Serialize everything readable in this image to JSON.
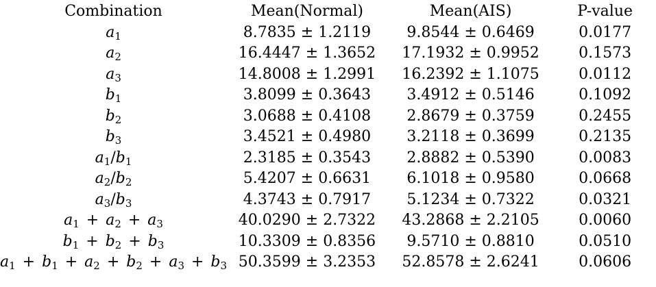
{
  "table": {
    "headers": [
      "Combination",
      "Mean(Normal)",
      "Mean(AIS)",
      "P-value"
    ],
    "rows": [
      {
        "combo": "a_1",
        "normal": "8.7835 ± 1.2119",
        "ais": "9.8544 ± 0.6469",
        "p": "0.0177",
        "bold": true
      },
      {
        "combo": "a_2",
        "normal": "16.4447 ± 1.3652",
        "ais": "17.1932 ± 0.9952",
        "p": "0.1573",
        "bold": false
      },
      {
        "combo": "a_3",
        "normal": "14.8008 ± 1.2991",
        "ais": "16.2392 ± 1.1075",
        "p": "0.0112",
        "bold": true
      },
      {
        "combo": "b_1",
        "normal": "3.8099 ± 0.3643",
        "ais": "3.4912 ± 0.5146",
        "p": "0.1092",
        "bold": false
      },
      {
        "combo": "b_2",
        "normal": "3.0688 ± 0.4108",
        "ais": "2.8679 ± 0.3759",
        "p": "0.2455",
        "bold": false
      },
      {
        "combo": "b_3",
        "normal": "3.4521 ± 0.4980",
        "ais": "3.2118 ± 0.3699",
        "p": "0.2135",
        "bold": false
      },
      {
        "combo": "a_1/b_1",
        "normal": "2.3185 ± 0.3543",
        "ais": "2.8882 ± 0.5390",
        "p": "0.0083",
        "bold": true
      },
      {
        "combo": "a_2/b_2",
        "normal": "5.4207 ± 0.6631",
        "ais": "6.1018 ± 0.9580",
        "p": "0.0668",
        "bold": false
      },
      {
        "combo": "a_3/b_3",
        "normal": "4.3743 ± 0.7917",
        "ais": "5.1234 ± 0.7322",
        "p": "0.0321",
        "bold": true
      },
      {
        "combo": "a_1 + a_2 + a_3",
        "normal": "40.0290 ± 2.7322",
        "ais": "43.2868 ± 2.2105",
        "p": "0.0060",
        "bold": true
      },
      {
        "combo": "b_1 + b_2 + b_3",
        "normal": "10.3309 ± 0.8356",
        "ais": "9.5710 ± 0.8810",
        "p": "0.0510",
        "bold": false
      },
      {
        "combo": "a_1 + b_1 + a_2 + b_2 + a_3 + b_3",
        "normal": "50.3599 ± 3.2353",
        "ais": "52.8578 ± 2.6241",
        "p": "0.0606",
        "bold": false
      }
    ]
  }
}
